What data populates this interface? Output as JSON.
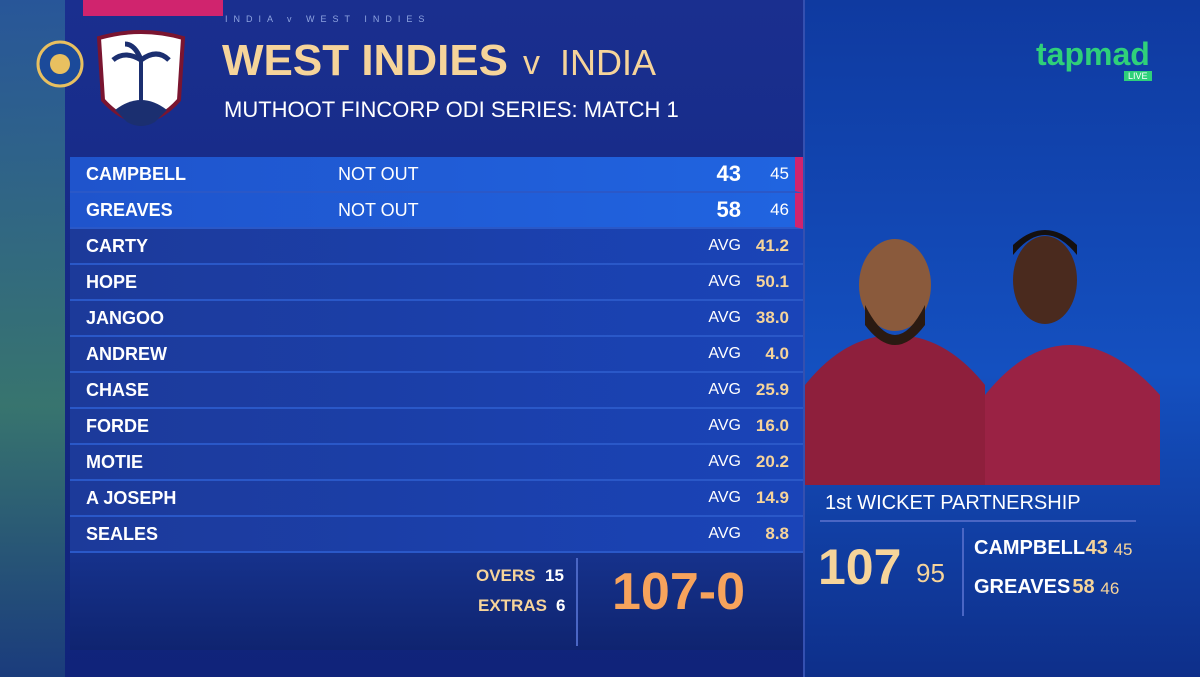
{
  "header": {
    "topline": "INDIA v WEST INDIES",
    "team1": "WEST INDIES",
    "versus": "v",
    "team2": "INDIA",
    "series": "MUTHOOT FINCORP ODI SERIES: MATCH 1"
  },
  "batting": [
    {
      "name": "CAMPBELL",
      "status": "NOT OUT",
      "runs": "43",
      "balls": "45"
    },
    {
      "name": "GREAVES",
      "status": "NOT OUT",
      "runs": "58",
      "balls": "46"
    }
  ],
  "to_bat_label": "AVG",
  "to_bat": [
    {
      "name": "CARTY",
      "avg": "41.2"
    },
    {
      "name": "HOPE",
      "avg": "50.1"
    },
    {
      "name": "JANGOO",
      "avg": "38.0"
    },
    {
      "name": "ANDREW",
      "avg": "4.0"
    },
    {
      "name": "CHASE",
      "avg": "25.9"
    },
    {
      "name": "FORDE",
      "avg": "16.0"
    },
    {
      "name": "MOTIE",
      "avg": "20.2"
    },
    {
      "name": "A JOSEPH",
      "avg": "14.9"
    },
    {
      "name": "SEALES",
      "avg": "8.8"
    }
  ],
  "footer": {
    "overs_label": "OVERS",
    "overs": "15",
    "extras_label": "EXTRAS",
    "extras": "6",
    "score": "107-0"
  },
  "brand": {
    "name": "tapmad",
    "badge": "LIVE"
  },
  "partnership": {
    "title": "1st WICKET PARTNERSHIP",
    "runs": "107",
    "balls": "95",
    "players": [
      {
        "name": "CAMPBELL",
        "runs": "43",
        "balls": "45"
      },
      {
        "name": "GREAVES",
        "runs": "58",
        "balls": "46"
      }
    ]
  }
}
